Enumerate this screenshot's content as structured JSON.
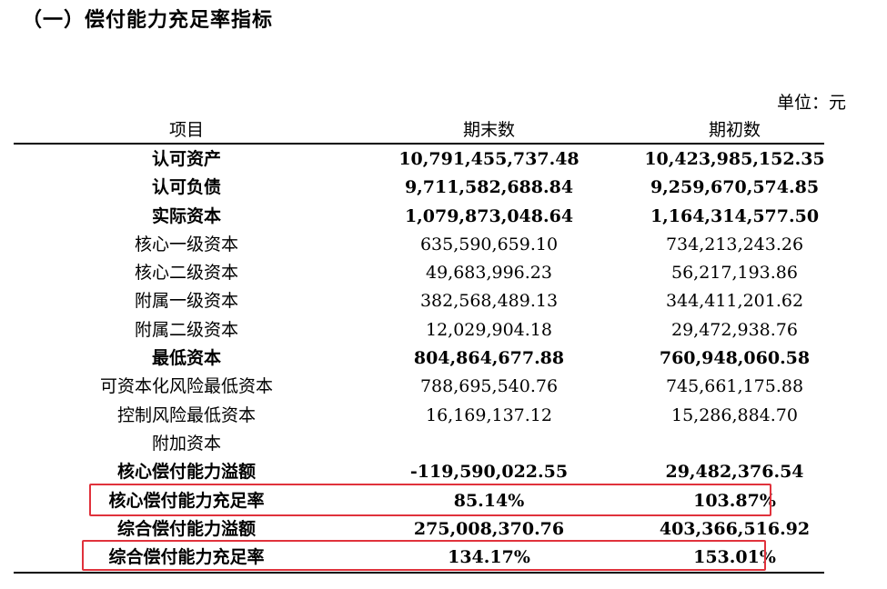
{
  "section_title": "（一）偿付能力充足率指标",
  "unit": "单位：元",
  "header": {
    "item": "项目",
    "end": "期末数",
    "begin": "期初数"
  },
  "rows": [
    {
      "item": "认可资产",
      "end": "10,791,455,737.48",
      "begin": "10,423,985,152.35"
    },
    {
      "item": "认可负债",
      "end": "9,711,582,688.84",
      "begin": "9,259,670,574.85"
    },
    {
      "item": "实际资本",
      "end": "1,079,873,048.64",
      "begin": "1,164,314,577.50"
    },
    {
      "item": "核心一级资本",
      "end": "635,590,659.10",
      "begin": "734,213,243.26"
    },
    {
      "item": "核心二级资本",
      "end": "49,683,996.23",
      "begin": "56,217,193.86"
    },
    {
      "item": "附属一级资本",
      "end": "382,568,489.13",
      "begin": "344,411,201.62"
    },
    {
      "item": "附属二级资本",
      "end": "12,029,904.18",
      "begin": "29,472,938.76"
    },
    {
      "item": "最低资本",
      "end": "804,864,677.88",
      "begin": "760,948,060.58"
    },
    {
      "item": "可资本化风险最低资本",
      "end": "788,695,540.76",
      "begin": "745,661,175.88"
    },
    {
      "item": "控制风险最低资本",
      "end": "16,169,137.12",
      "begin": "15,286,884.70"
    },
    {
      "item": "附加资本",
      "end": "",
      "begin": ""
    },
    {
      "item": "核心偿付能力溢额",
      "end": "-119,590,022.55",
      "begin": "29,482,376.54"
    },
    {
      "item": "核心偿付能力充足率",
      "end": "85.14%",
      "begin": "103.87%"
    },
    {
      "item": "综合偿付能力溢额",
      "end": "275,008,370.76",
      "begin": "403,366,516.92"
    },
    {
      "item": "综合偿付能力充足率",
      "end": "134.17%",
      "begin": "153.01%"
    }
  ],
  "highlight_color": "#e0323c"
}
